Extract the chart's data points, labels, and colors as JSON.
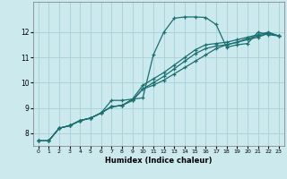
{
  "title": "",
  "xlabel": "Humidex (Indice chaleur)",
  "ylabel": "",
  "xlim": [
    -0.5,
    23.5
  ],
  "ylim": [
    7.5,
    13.2
  ],
  "yticks": [
    8,
    9,
    10,
    11,
    12
  ],
  "xticks": [
    0,
    1,
    2,
    3,
    4,
    5,
    6,
    7,
    8,
    9,
    10,
    11,
    12,
    13,
    14,
    15,
    16,
    17,
    18,
    19,
    20,
    21,
    22,
    23
  ],
  "bg_color": "#cce9ee",
  "grid_color": "#aad4db",
  "line_color": "#1a7070",
  "line_width": 0.9,
  "marker": "+",
  "marker_size": 3.5,
  "series": [
    [
      7.7,
      7.7,
      8.2,
      8.3,
      8.5,
      8.6,
      8.8,
      9.3,
      9.3,
      9.35,
      9.4,
      11.1,
      12.0,
      12.55,
      12.6,
      12.6,
      12.58,
      12.3,
      11.4,
      11.5,
      11.55,
      12.0,
      11.9,
      11.85
    ],
    [
      7.7,
      7.7,
      8.2,
      8.3,
      8.5,
      8.6,
      8.8,
      9.05,
      9.1,
      9.35,
      9.9,
      10.15,
      10.4,
      10.7,
      11.0,
      11.3,
      11.5,
      11.55,
      11.6,
      11.7,
      11.8,
      11.9,
      12.0,
      11.85
    ],
    [
      7.7,
      7.7,
      8.2,
      8.3,
      8.5,
      8.6,
      8.8,
      9.05,
      9.1,
      9.3,
      9.75,
      10.0,
      10.25,
      10.55,
      10.85,
      11.15,
      11.35,
      11.45,
      11.5,
      11.6,
      11.75,
      11.85,
      11.95,
      11.85
    ],
    [
      7.7,
      7.7,
      8.2,
      8.3,
      8.5,
      8.6,
      8.8,
      9.05,
      9.1,
      9.3,
      9.75,
      9.9,
      10.1,
      10.35,
      10.6,
      10.85,
      11.1,
      11.35,
      11.5,
      11.6,
      11.7,
      11.8,
      11.95,
      11.85
    ]
  ]
}
